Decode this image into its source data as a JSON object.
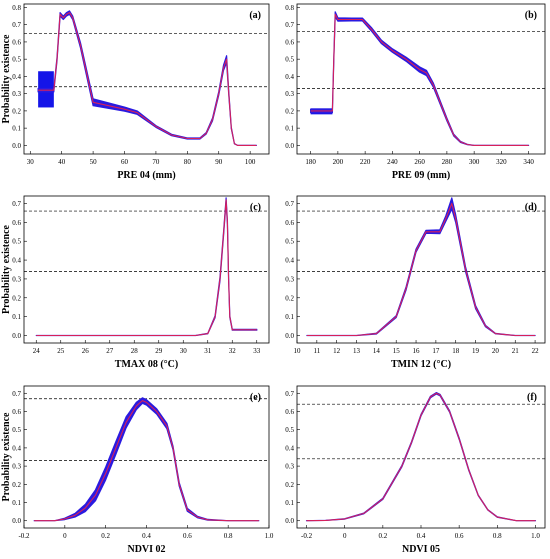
{
  "figure": {
    "y_axis_label": "Probability existence"
  },
  "chart_data": [
    {
      "type": "line",
      "panel_label": "(a)",
      "xlabel": "PRE 04 (mm)",
      "ylabel": "Probability existence",
      "xlim": [
        28,
        106
      ],
      "ylim": [
        -0.05,
        0.82
      ],
      "xticks": [
        30,
        40,
        50,
        60,
        70,
        80,
        90,
        100
      ],
      "yticks": [
        0,
        0.1,
        0.2,
        0.3,
        0.4,
        0.5,
        0.6,
        0.7,
        0.8
      ],
      "ref_lines": [
        0.65,
        0.34
      ],
      "band": {
        "x": [
          32.5,
          37.5
        ],
        "y": [
          0.22,
          0.43
        ]
      },
      "series": [
        {
          "x": [
            32.5,
            37.5,
            38.5,
            39.5,
            40.5,
            41.5,
            42.5,
            43.5,
            46,
            50,
            60,
            64,
            70,
            75,
            80,
            84,
            86,
            88,
            90,
            91.5,
            92.5,
            93.2,
            94,
            95,
            96,
            100,
            102
          ],
          "y": [
            0.32,
            0.32,
            0.5,
            0.76,
            0.74,
            0.76,
            0.77,
            0.74,
            0.58,
            0.25,
            0.21,
            0.19,
            0.11,
            0.06,
            0.04,
            0.04,
            0.07,
            0.15,
            0.3,
            0.45,
            0.5,
            0.3,
            0.1,
            0.01,
            0,
            0,
            0
          ],
          "spread": [
            0.01,
            0.01,
            0.01,
            0.01,
            0.01,
            0.01,
            0.01,
            0.01,
            0.015,
            0.02,
            0.012,
            0.01,
            0.005,
            0.004,
            0.003,
            0.003,
            0.004,
            0.008,
            0.01,
            0.015,
            0.02,
            0.01,
            0.004,
            0.001,
            0,
            0,
            0
          ]
        }
      ]
    },
    {
      "type": "line",
      "panel_label": "(b)",
      "xlabel": "PRE 09 (mm)",
      "ylabel": "",
      "xlim": [
        170,
        352
      ],
      "ylim": [
        -0.05,
        0.82
      ],
      "xticks": [
        180,
        200,
        220,
        240,
        260,
        280,
        300,
        320,
        340
      ],
      "yticks": [
        0,
        0.1,
        0.2,
        0.3,
        0.4,
        0.5,
        0.6,
        0.7,
        0.8
      ],
      "ref_lines": [
        0.66,
        0.33
      ],
      "band": {
        "x": [
          180,
          196
        ],
        "y": [
          0.18,
          0.215
        ]
      },
      "series": [
        {
          "x": [
            180,
            196,
            197,
            198,
            200,
            210,
            218,
            225,
            232,
            240,
            250,
            260,
            265,
            270,
            275,
            280,
            285,
            290,
            295,
            300,
            310,
            330,
            340
          ],
          "y": [
            0.2,
            0.2,
            0.5,
            0.76,
            0.73,
            0.73,
            0.73,
            0.67,
            0.6,
            0.55,
            0.5,
            0.44,
            0.42,
            0.35,
            0.25,
            0.15,
            0.06,
            0.02,
            0.005,
            0,
            0,
            0,
            0
          ],
          "spread": [
            0.01,
            0.01,
            0.01,
            0.015,
            0.01,
            0.008,
            0.008,
            0.01,
            0.01,
            0.01,
            0.012,
            0.015,
            0.015,
            0.012,
            0.01,
            0.008,
            0.005,
            0.003,
            0.001,
            0,
            0,
            0,
            0
          ]
        }
      ]
    },
    {
      "type": "line",
      "panel_label": "(c)",
      "xlabel": "TMAX 08 (°C)",
      "ylabel": "Probability existence",
      "xlim": [
        23.5,
        33.5
      ],
      "ylim": [
        -0.04,
        0.74
      ],
      "xticks": [
        24,
        25,
        26,
        27,
        28,
        29,
        30,
        31,
        32,
        33
      ],
      "yticks": [
        0,
        0.1,
        0.2,
        0.3,
        0.4,
        0.5,
        0.6,
        0.7
      ],
      "ref_lines": [
        0.66,
        0.34
      ],
      "band": null,
      "series": [
        {
          "x": [
            24,
            28,
            30.5,
            31,
            31.3,
            31.5,
            31.65,
            31.75,
            31.8,
            31.85,
            31.9,
            32,
            33
          ],
          "y": [
            0,
            0,
            0,
            0.01,
            0.1,
            0.3,
            0.55,
            0.72,
            0.6,
            0.3,
            0.1,
            0.03,
            0.03
          ],
          "spread": [
            0,
            0,
            0,
            0.001,
            0.005,
            0.01,
            0.01,
            0.01,
            0.01,
            0.008,
            0.004,
            0.002,
            0.002
          ]
        }
      ]
    },
    {
      "type": "line",
      "panel_label": "(d)",
      "xlabel": "TMIN 12 (°C)",
      "ylabel": "",
      "xlim": [
        10,
        22.5
      ],
      "ylim": [
        -0.04,
        0.74
      ],
      "xticks": [
        10,
        11,
        12,
        13,
        14,
        15,
        16,
        17,
        18,
        19,
        20,
        21,
        22
      ],
      "yticks": [
        0,
        0.1,
        0.2,
        0.3,
        0.4,
        0.5,
        0.6,
        0.7
      ],
      "ref_lines": [
        0.66,
        0.34
      ],
      "band": null,
      "series": [
        {
          "x": [
            10.5,
            13,
            14,
            15,
            15.5,
            16,
            16.5,
            17.2,
            17.5,
            17.8,
            18,
            18.5,
            19,
            19.5,
            20,
            21,
            22
          ],
          "y": [
            0,
            0,
            0.01,
            0.1,
            0.25,
            0.45,
            0.55,
            0.55,
            0.62,
            0.7,
            0.62,
            0.35,
            0.15,
            0.05,
            0.01,
            0,
            0
          ],
          "spread": [
            0,
            0,
            0.002,
            0.005,
            0.008,
            0.008,
            0.008,
            0.01,
            0.015,
            0.03,
            0.02,
            0.012,
            0.008,
            0.004,
            0.001,
            0,
            0
          ]
        }
      ]
    },
    {
      "type": "line",
      "panel_label": "(e)",
      "xlabel": "NDVI 02",
      "ylabel": "Probability existence",
      "xlim": [
        -0.2,
        1.0
      ],
      "ylim": [
        -0.04,
        0.74
      ],
      "xticks": [
        -0.2,
        0,
        0.2,
        0.4,
        0.6,
        0.8,
        1.0
      ],
      "xtick_labels": [
        "-0.2",
        "0",
        "0.2",
        "0.4",
        "0.6",
        "0.8",
        "1.0"
      ],
      "yticks": [
        0,
        0.1,
        0.2,
        0.3,
        0.4,
        0.5,
        0.6,
        0.7
      ],
      "ref_lines": [
        0.67,
        0.33
      ],
      "band": null,
      "series": [
        {
          "x": [
            -0.15,
            -0.05,
            0.0,
            0.05,
            0.1,
            0.15,
            0.2,
            0.25,
            0.3,
            0.35,
            0.38,
            0.4,
            0.45,
            0.5,
            0.53,
            0.56,
            0.6,
            0.65,
            0.7,
            0.8,
            0.95
          ],
          "y": [
            0,
            0,
            0.01,
            0.03,
            0.07,
            0.14,
            0.26,
            0.4,
            0.54,
            0.63,
            0.66,
            0.65,
            0.6,
            0.52,
            0.4,
            0.2,
            0.06,
            0.02,
            0.005,
            0,
            0
          ],
          "spread": [
            0,
            0,
            0.004,
            0.01,
            0.02,
            0.03,
            0.035,
            0.035,
            0.03,
            0.02,
            0.015,
            0.015,
            0.015,
            0.015,
            0.01,
            0.01,
            0.008,
            0.004,
            0.002,
            0,
            0
          ]
        }
      ]
    },
    {
      "type": "line",
      "panel_label": "(f)",
      "xlabel": "NDVI 05",
      "ylabel": "",
      "xlim": [
        -0.25,
        1.05
      ],
      "ylim": [
        -0.04,
        0.74
      ],
      "xticks": [
        -0.2,
        0,
        0.2,
        0.4,
        0.6,
        0.8,
        1.0
      ],
      "xtick_labels": [
        "-0.2",
        "0",
        "0.2",
        "0.4",
        "0.6",
        "0.8",
        "1.0"
      ],
      "yticks": [
        0,
        0.1,
        0.2,
        0.3,
        0.4,
        0.5,
        0.6,
        0.7
      ],
      "ref_lines": [
        0.64,
        0.34
      ],
      "band": null,
      "series": [
        {
          "x": [
            -0.2,
            -0.1,
            0.0,
            0.1,
            0.2,
            0.3,
            0.35,
            0.4,
            0.45,
            0.48,
            0.5,
            0.55,
            0.6,
            0.65,
            0.7,
            0.75,
            0.8,
            0.9,
            1.0
          ],
          "y": [
            0,
            0.002,
            0.01,
            0.04,
            0.12,
            0.3,
            0.43,
            0.58,
            0.68,
            0.7,
            0.69,
            0.6,
            0.45,
            0.28,
            0.14,
            0.06,
            0.02,
            0,
            0
          ],
          "spread": [
            0,
            0,
            0.001,
            0.002,
            0.003,
            0.004,
            0.004,
            0.004,
            0.004,
            0.004,
            0.004,
            0.004,
            0.004,
            0.003,
            0.002,
            0.001,
            0.001,
            0,
            0
          ]
        }
      ]
    }
  ]
}
